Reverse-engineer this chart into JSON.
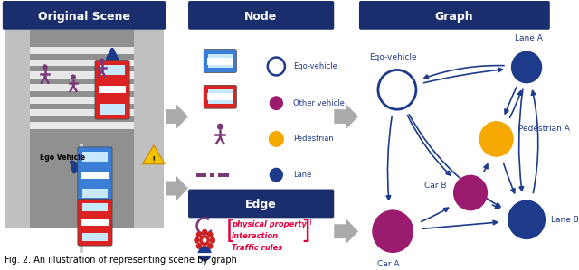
{
  "title": "Fig. 2. An illustration of representing scene by graph",
  "background_color": "#ffffff",
  "section_titles": [
    "Original Scene",
    "Node",
    "Graph"
  ],
  "section_title_bg": "#1a2e6e",
  "section_title_color": "#ffffff",
  "edge_title": "Edge",
  "node_labels": {
    "ego_vehicle": "Ego-vehicle",
    "other_vehicle": "Other vehicle",
    "pedestrian": "Pedestrian",
    "lane": "Lane"
  },
  "node_colors": {
    "ego_vehicle": "#ffffff",
    "other_vehicle": "#9b1b6e",
    "pedestrian": "#f5a800",
    "lane": "#1e3a8a"
  },
  "node_edge_color": "#1e3a8a",
  "graph_node_labels": {
    "ego": "Ego-vehicle",
    "lane_a": "Lane A",
    "ped_a": "Pedestrian A",
    "car_b": "Car B",
    "car_a": "Car A",
    "lane_b": "Lane B"
  },
  "graph_node_colors": {
    "ego": "#ffffff",
    "lane_a": "#1e3a8a",
    "ped_a": "#f5a800",
    "car_b": "#9b1b6e",
    "car_a": "#9b1b6e",
    "lane_b": "#1e3a8a"
  },
  "arrow_color": "#888888",
  "edge_color": "#1e3a8a",
  "edge_text": [
    "physical property",
    "Interaction",
    "Traffic rules"
  ],
  "edge_text_color": "#e8003d",
  "bracket_color": "#e8003d",
  "road_gray": "#909090",
  "sidewalk_gray": "#c0c0c0",
  "crosswalk_white": "#e8e8e8",
  "car_blue": "#3a7fd5",
  "car_red": "#dd2222",
  "pedestrian_purple": "#7a3a7a"
}
